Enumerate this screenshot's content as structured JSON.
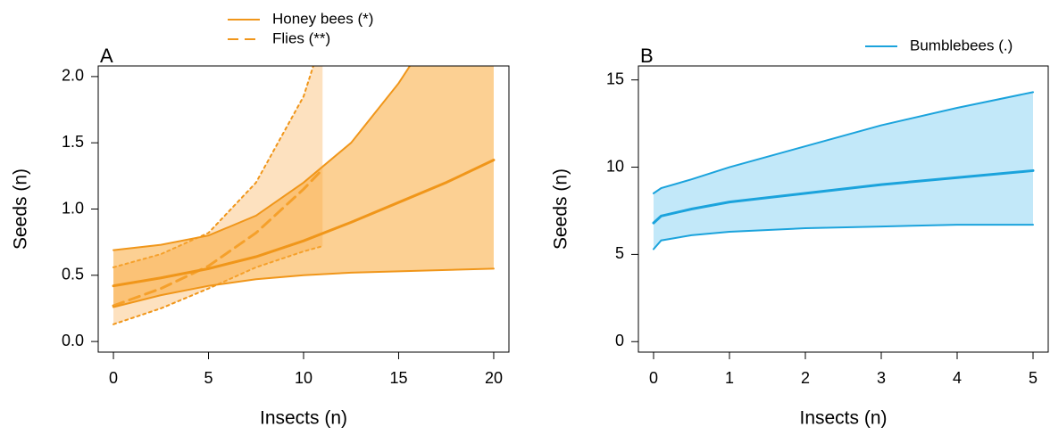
{
  "chart_data": [
    {
      "type": "line",
      "panel_label": "A",
      "xlabel": "Insects (n)",
      "ylabel": "Seeds (n)",
      "xlim": [
        -0.8,
        20.8
      ],
      "ylim": [
        -0.08,
        2.08
      ],
      "xticks": [
        0,
        5,
        10,
        15,
        20
      ],
      "yticks": [
        {
          "value": 0,
          "label": "0.0"
        },
        0.5,
        {
          "value": 1,
          "label": "1.0"
        },
        1.5,
        {
          "value": 2,
          "label": "2.0"
        }
      ],
      "legend": "top",
      "series": [
        {
          "name": "Flies (**)",
          "color": "#f0961a",
          "fill": "#fcc98a",
          "line_style": "dashed",
          "band_line_style": "dotted",
          "x": [
            0,
            2.5,
            5,
            7.5,
            10,
            11
          ],
          "values": [
            0.27,
            0.4,
            0.57,
            0.82,
            1.15,
            1.3
          ],
          "upper": [
            0.56,
            0.66,
            0.82,
            1.2,
            1.85,
            2.3
          ],
          "lower": [
            0.13,
            0.25,
            0.4,
            0.56,
            0.68,
            0.72
          ]
        },
        {
          "name": "Honey bees (*)",
          "color": "#f0961a",
          "fill": "#f9a93a",
          "line_style": "solid",
          "band_line_style": "solid",
          "x": [
            0,
            2.5,
            5,
            7.5,
            10,
            12.5,
            15,
            17.5,
            20
          ],
          "values": [
            0.42,
            0.48,
            0.55,
            0.64,
            0.76,
            0.9,
            1.05,
            1.2,
            1.37
          ],
          "upper": [
            0.69,
            0.73,
            0.8,
            0.95,
            1.2,
            1.5,
            1.95,
            2.5,
            3.2
          ],
          "lower": [
            0.26,
            0.35,
            0.42,
            0.47,
            0.5,
            0.52,
            0.53,
            0.54,
            0.55
          ]
        }
      ]
    },
    {
      "type": "line",
      "panel_label": "B",
      "xlabel": "Insects (n)",
      "ylabel": "Seeds (n)",
      "xlim": [
        -0.2,
        5.2
      ],
      "ylim": [
        -0.6,
        15.8
      ],
      "xticks": [
        0,
        1,
        2,
        3,
        4,
        5
      ],
      "yticks": [
        0,
        5,
        10,
        15
      ],
      "legend": "top-right",
      "series": [
        {
          "name": "Bumblebees (.)",
          "color": "#1ba3dc",
          "fill": "#8fd6f4",
          "line_style": "solid",
          "band_line_style": "solid",
          "x": [
            0,
            0.1,
            0.5,
            1,
            2,
            3,
            4,
            5
          ],
          "values": [
            6.8,
            7.2,
            7.6,
            8.0,
            8.5,
            9.0,
            9.4,
            9.8
          ],
          "upper": [
            8.5,
            8.8,
            9.3,
            10.0,
            11.2,
            12.4,
            13.4,
            14.3
          ],
          "lower": [
            5.3,
            5.8,
            6.1,
            6.3,
            6.5,
            6.6,
            6.7,
            6.7
          ]
        }
      ]
    }
  ]
}
